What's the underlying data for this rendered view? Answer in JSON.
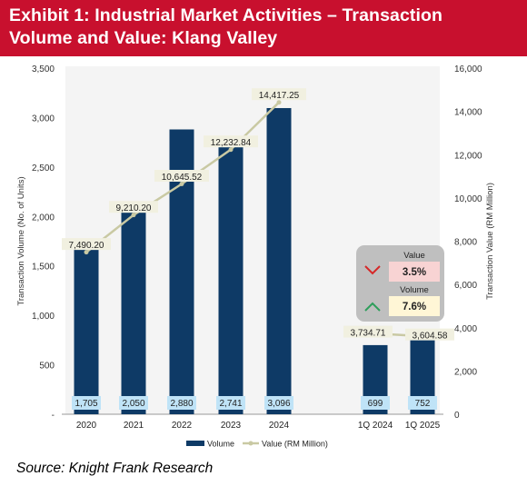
{
  "header": {
    "title_line1": "Exhibit 1: Industrial Market Activities – Transaction",
    "title_line2": "Volume and Value: Klang Valley",
    "bg_color": "#C8102E"
  },
  "source": "Source: Knight Frank Research",
  "chart_data": {
    "type": "bar",
    "categories": [
      "2020",
      "2021",
      "2022",
      "2023",
      "2024",
      "1Q 2024",
      "1Q 2025"
    ],
    "series": [
      {
        "name": "Volume",
        "axis": "left",
        "type": "bar",
        "color": "#0E3A66",
        "values": [
          1705,
          2050,
          2880,
          2741,
          3096,
          699,
          752
        ],
        "labels": [
          "1,705",
          "2,050",
          "2,880",
          "2,741",
          "3,096",
          "699",
          "752"
        ]
      },
      {
        "name": "Value (RM Million)",
        "axis": "right",
        "type": "line",
        "color": "#C9C9A3",
        "values": [
          7490.2,
          9210.2,
          10645.52,
          12232.84,
          14417.25,
          3734.71,
          3604.58
        ],
        "labels": [
          "7,490.20",
          "9,210.20",
          "10,645.52",
          "12,232.84",
          "14,417.25",
          "3,734.71",
          "3,604.58"
        ],
        "segments": [
          [
            0,
            4
          ],
          [
            5,
            6
          ]
        ]
      }
    ],
    "ylabel": "Transaction Volume (No. of Units)",
    "ylabel_right": "Transaction Value (RM Million)",
    "ylim": [
      0,
      3500
    ],
    "ylim_right": [
      0,
      16000
    ],
    "yticks": [
      "-",
      "500",
      "1,000",
      "1,500",
      "2,000",
      "2,500",
      "3,000",
      "3,500"
    ],
    "yticks_right": [
      "0",
      "2,000",
      "4,000",
      "6,000",
      "8,000",
      "10,000",
      "12,000",
      "14,000",
      "16,000"
    ],
    "legend_position": "bottom",
    "annotation": {
      "value_label": "Value",
      "value_change": "3.5%",
      "value_direction": "down",
      "volume_label": "Volume",
      "volume_change": "7.6%",
      "volume_direction": "up"
    }
  }
}
